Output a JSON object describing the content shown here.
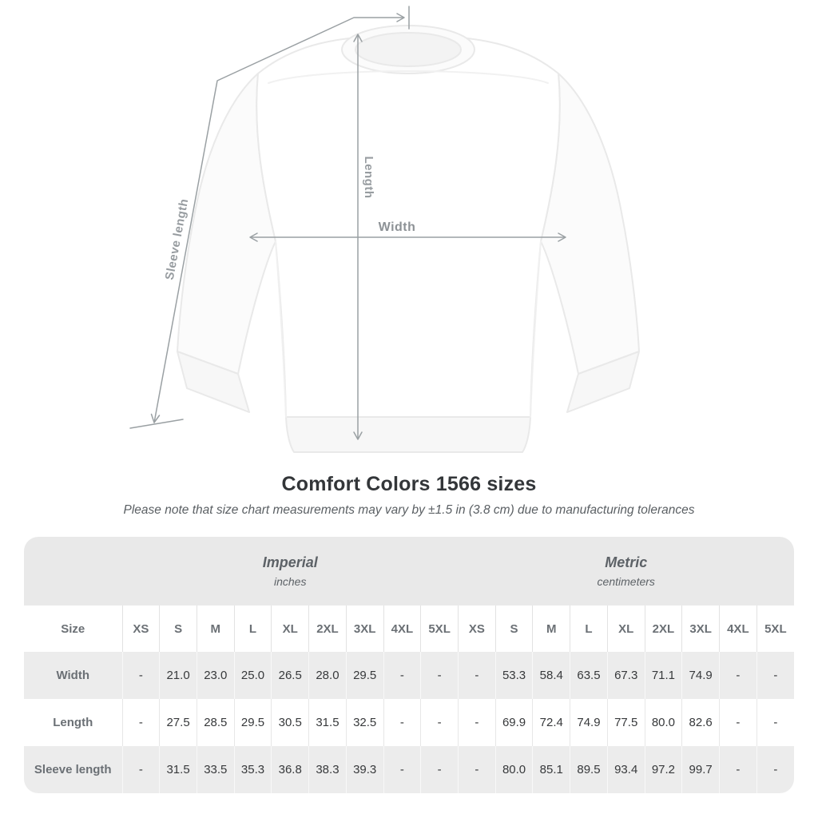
{
  "diagram": {
    "labels": {
      "sleeve": "Sleeve length",
      "length": "Length",
      "width": "Width"
    }
  },
  "title": "Comfort Colors 1566 sizes",
  "subtitle": "Please note that size chart measurements may vary by ±1.5 in (3.8 cm) due to manufacturing tolerances",
  "chart_data": {
    "type": "table",
    "title": "Comfort Colors 1566 sizes",
    "size_column_header": "Size",
    "unit_groups": [
      {
        "label": "Imperial",
        "sublabel": "inches"
      },
      {
        "label": "Metric",
        "sublabel": "centimeters"
      }
    ],
    "sizes": [
      "XS",
      "S",
      "M",
      "L",
      "XL",
      "2XL",
      "3XL",
      "4XL",
      "5XL"
    ],
    "rows": [
      {
        "label": "Width",
        "imperial": [
          "-",
          "21.0",
          "23.0",
          "25.0",
          "26.5",
          "28.0",
          "29.5",
          "-",
          "-"
        ],
        "metric": [
          "-",
          "53.3",
          "58.4",
          "63.5",
          "67.3",
          "71.1",
          "74.9",
          "-",
          "-"
        ]
      },
      {
        "label": "Length",
        "imperial": [
          "-",
          "27.5",
          "28.5",
          "29.5",
          "30.5",
          "31.5",
          "32.5",
          "-",
          "-"
        ],
        "metric": [
          "-",
          "69.9",
          "72.4",
          "74.9",
          "77.5",
          "80.0",
          "82.6",
          "-",
          "-"
        ]
      },
      {
        "label": "Sleeve length",
        "imperial": [
          "-",
          "31.5",
          "33.5",
          "35.3",
          "36.8",
          "38.3",
          "39.3",
          "-",
          "-"
        ],
        "metric": [
          "-",
          "80.0",
          "85.1",
          "89.5",
          "93.4",
          "97.2",
          "99.7",
          "-",
          "-"
        ]
      }
    ]
  },
  "colors": {
    "measure_line": "#9aa0a3",
    "measure_label": "#979ca0",
    "title_text": "#333639",
    "subtitle_text": "#5a5f63",
    "table_header_bg": "#e9e9e9",
    "table_row_gray_bg": "#ececec",
    "table_label_text": "#6b7075",
    "table_value_text": "#37393b"
  }
}
